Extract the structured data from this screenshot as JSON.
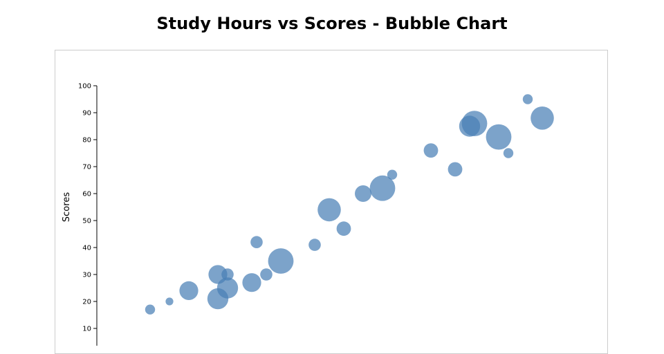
{
  "chart_data": {
    "type": "scatter",
    "title": "Study Hours vs Scores - Bubble Chart",
    "ylabel": "Scores",
    "xlabel": "",
    "ylim": [
      0,
      100
    ],
    "yticks": [
      10,
      20,
      30,
      40,
      50,
      60,
      70,
      80,
      90,
      100
    ],
    "color": "#4a7fb5",
    "points": [
      {
        "x": 1.1,
        "y": 17,
        "size": 2
      },
      {
        "x": 1.5,
        "y": 20,
        "size": 1
      },
      {
        "x": 1.9,
        "y": 24,
        "size": 6
      },
      {
        "x": 2.5,
        "y": 21,
        "size": 7
      },
      {
        "x": 2.5,
        "y": 30,
        "size": 6
      },
      {
        "x": 2.7,
        "y": 30,
        "size": 3
      },
      {
        "x": 2.7,
        "y": 25,
        "size": 7
      },
      {
        "x": 3.2,
        "y": 27,
        "size": 6
      },
      {
        "x": 3.3,
        "y": 42,
        "size": 3
      },
      {
        "x": 3.5,
        "y": 30,
        "size": 3
      },
      {
        "x": 3.8,
        "y": 35,
        "size": 9
      },
      {
        "x": 4.5,
        "y": 41,
        "size": 3
      },
      {
        "x": 4.8,
        "y": 54,
        "size": 8
      },
      {
        "x": 5.1,
        "y": 47,
        "size": 4
      },
      {
        "x": 5.5,
        "y": 60,
        "size": 5
      },
      {
        "x": 5.9,
        "y": 62,
        "size": 9
      },
      {
        "x": 6.1,
        "y": 67,
        "size": 2
      },
      {
        "x": 6.9,
        "y": 76,
        "size": 4
      },
      {
        "x": 7.4,
        "y": 69,
        "size": 4
      },
      {
        "x": 7.7,
        "y": 85,
        "size": 7
      },
      {
        "x": 7.8,
        "y": 86,
        "size": 9
      },
      {
        "x": 8.3,
        "y": 81,
        "size": 9
      },
      {
        "x": 8.5,
        "y": 75,
        "size": 2
      },
      {
        "x": 8.9,
        "y": 95,
        "size": 2
      },
      {
        "x": 9.2,
        "y": 88,
        "size": 8
      }
    ]
  }
}
